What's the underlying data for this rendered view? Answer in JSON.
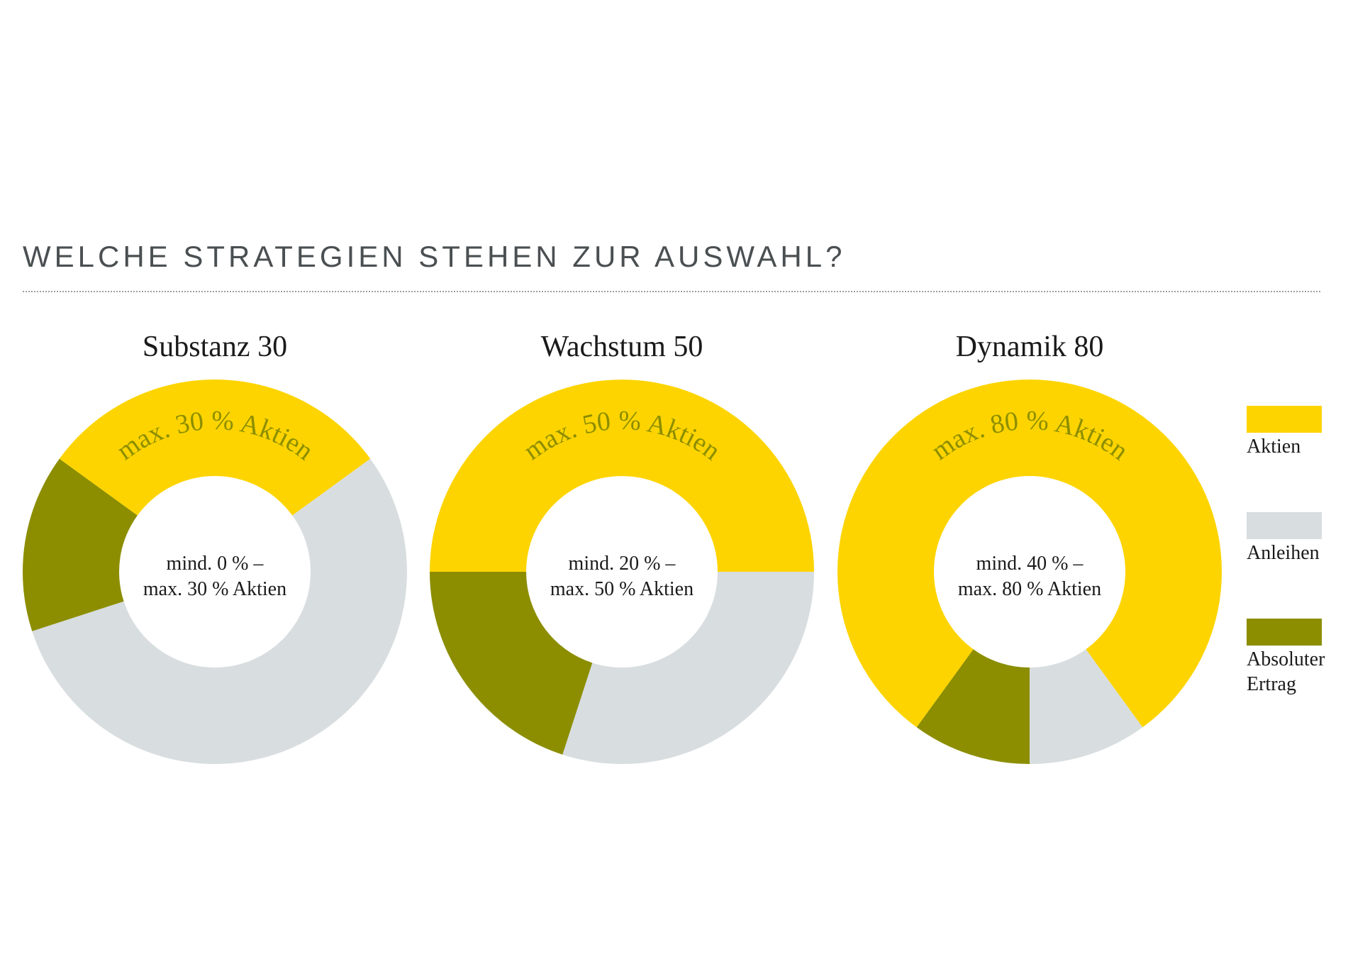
{
  "page": {
    "title": "WELCHE STRATEGIEN STEHEN ZUR AUSWAHL?"
  },
  "colors": {
    "aktien": "#fdd400",
    "anleihen": "#d8dde0",
    "absoluter_ertrag": "#8c8e00",
    "label": "#8c8e00"
  },
  "legend": {
    "items": [
      {
        "label": "Aktien",
        "color": "#fdd400"
      },
      {
        "label": "Anleihen",
        "color": "#d8dde0"
      },
      {
        "label": "Absoluter Ertrag",
        "color": "#8c8e00"
      }
    ]
  },
  "chart_data": [
    {
      "type": "pie",
      "title": "Substanz 30",
      "arc_label": "max. 30 % Aktien",
      "center_lines": [
        "mind. 0 % –",
        "max. 30 % Aktien"
      ],
      "slices": [
        {
          "name": "Aktien",
          "value": 30
        },
        {
          "name": "Anleihen",
          "value": 55
        },
        {
          "name": "Absoluter Ertrag",
          "value": 15
        }
      ]
    },
    {
      "type": "pie",
      "title": "Wachstum 50",
      "arc_label": "max. 50 % Aktien",
      "center_lines": [
        "mind. 20 % –",
        "max. 50 % Aktien"
      ],
      "slices": [
        {
          "name": "Aktien",
          "value": 50
        },
        {
          "name": "Anleihen",
          "value": 30
        },
        {
          "name": "Absoluter Ertrag",
          "value": 20
        }
      ]
    },
    {
      "type": "pie",
      "title": "Dynamik 80",
      "arc_label": "max. 80 % Aktien",
      "center_lines": [
        "mind. 40 % –",
        "max. 80 % Aktien"
      ],
      "slices": [
        {
          "name": "Aktien",
          "value": 80
        },
        {
          "name": "Anleihen",
          "value": 10
        },
        {
          "name": "Absoluter Ertrag",
          "value": 10
        }
      ]
    }
  ]
}
